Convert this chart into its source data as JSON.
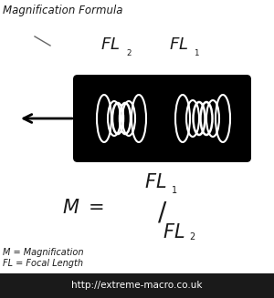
{
  "title": "Magnification Formula",
  "bg_color": "#ffffff",
  "footer_bg": "#1a1a1a",
  "footer_text": "http://extreme-macro.co.uk",
  "footer_text_color": "#ffffff",
  "legend_line1": "M = Magnification",
  "legend_line2": "FL = Focal Length",
  "text_color": "#1a1a1a",
  "figsize": [
    3.0,
    3.27
  ],
  "dpi": 100
}
